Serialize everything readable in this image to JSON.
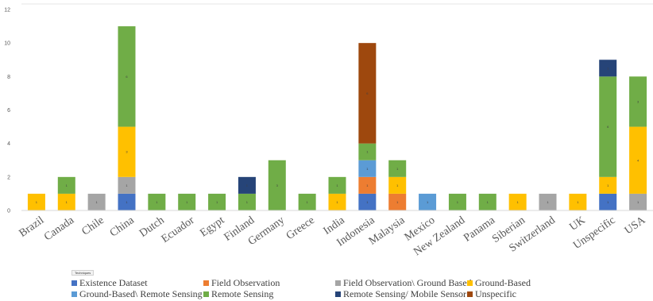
{
  "chart_data": {
    "type": "bar",
    "stacked": true,
    "ylim": [
      0,
      12
    ],
    "yticks": [
      "0",
      "2",
      "4",
      "6",
      "8",
      "10",
      "12"
    ],
    "gridlines": false,
    "legend_title": "Techniques",
    "legend_position": "bottom",
    "categories": [
      "Brazil",
      "Canada",
      "Chile",
      "China",
      "Dutch",
      "Ecuador",
      "Egypt",
      "Finland",
      "Germany",
      "Greece",
      "India",
      "Indonesia",
      "Malaysia",
      "Mexico",
      "New Zealand",
      "Panama",
      "Siberian",
      "Switzerland",
      "UK",
      "Unspecific",
      "USA"
    ],
    "series": [
      {
        "name": "Existence Dataset",
        "color": "#4472c4",
        "values": [
          0,
          0,
          0,
          1,
          0,
          0,
          0,
          0,
          0,
          0,
          0,
          1,
          0,
          0,
          0,
          0,
          0,
          0,
          0,
          1,
          0
        ]
      },
      {
        "name": "Field Observation",
        "color": "#ed7d31",
        "values": [
          0,
          0,
          0,
          0,
          0,
          0,
          0,
          0,
          0,
          0,
          0,
          1,
          1,
          0,
          0,
          0,
          0,
          0,
          0,
          0,
          0
        ]
      },
      {
        "name": "Field Observation\\ Ground Based",
        "color": "#a5a5a5",
        "values": [
          0,
          0,
          1,
          1,
          0,
          0,
          0,
          0,
          0,
          0,
          0,
          0,
          0,
          0,
          0,
          0,
          0,
          1,
          0,
          0,
          1
        ]
      },
      {
        "name": "Ground-Based",
        "color": "#ffc000",
        "values": [
          1,
          1,
          0,
          3,
          0,
          0,
          0,
          0,
          0,
          0,
          1,
          0,
          1,
          0,
          0,
          0,
          1,
          0,
          1,
          1,
          4
        ]
      },
      {
        "name": "Ground-Based\\ Remote Sensing",
        "color": "#5b9bd5",
        "values": [
          0,
          0,
          0,
          0,
          0,
          0,
          0,
          0,
          0,
          0,
          0,
          1,
          0,
          1,
          0,
          0,
          0,
          0,
          0,
          0,
          0
        ]
      },
      {
        "name": "Remote Sensing",
        "color": "#70ad47",
        "values": [
          0,
          1,
          0,
          6,
          1,
          1,
          1,
          1,
          3,
          1,
          1,
          1,
          1,
          0,
          1,
          1,
          0,
          0,
          0,
          6,
          3
        ]
      },
      {
        "name": "Remote Sensing/ Mobile Sensor",
        "color": "#264478",
        "values": [
          0,
          0,
          0,
          0,
          0,
          0,
          0,
          1,
          0,
          0,
          0,
          0,
          0,
          0,
          0,
          0,
          0,
          0,
          0,
          1,
          0
        ]
      },
      {
        "name": "Unspecific",
        "color": "#9e480e",
        "values": [
          0,
          0,
          0,
          0,
          0,
          0,
          0,
          0,
          0,
          0,
          0,
          6,
          0,
          0,
          0,
          0,
          0,
          0,
          0,
          0,
          0
        ]
      }
    ]
  }
}
